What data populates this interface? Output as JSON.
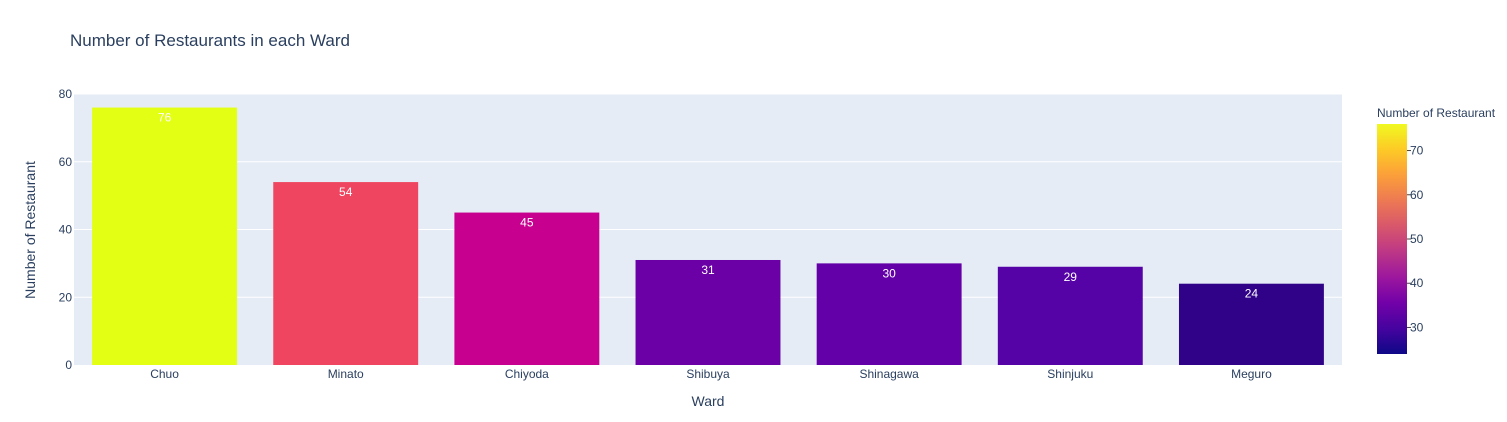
{
  "chart_data": {
    "type": "bar",
    "title": "Number of Restaurants in each Ward",
    "xlabel": "Ward",
    "ylabel": "Number of Restaurant",
    "ylim": [
      0,
      80
    ],
    "yticks": [
      0,
      20,
      40,
      60,
      80
    ],
    "grid": true,
    "categories": [
      "Chuo",
      "Minato",
      "Chiyoda",
      "Shibuya",
      "Shinagawa",
      "Shinjuku",
      "Meguro"
    ],
    "values": [
      76,
      54,
      45,
      31,
      30,
      29,
      24
    ],
    "bar_colors": [
      "#e2ff14",
      "#ef4560",
      "#c80090",
      "#6a00a5",
      "#6300a7",
      "#5502a6",
      "#2f0288"
    ],
    "colorbar": {
      "title": "Number of Restaurant",
      "range": [
        24,
        76
      ],
      "ticks": [
        30,
        40,
        50,
        60,
        70
      ],
      "colorscale": [
        "#0d0887",
        "#46039f",
        "#7201a8",
        "#9c179e",
        "#bd3786",
        "#d8576b",
        "#ed7953",
        "#fb9f3a",
        "#fdca26",
        "#f0f921"
      ]
    },
    "plot_bgcolor": "#e5ecf6"
  }
}
